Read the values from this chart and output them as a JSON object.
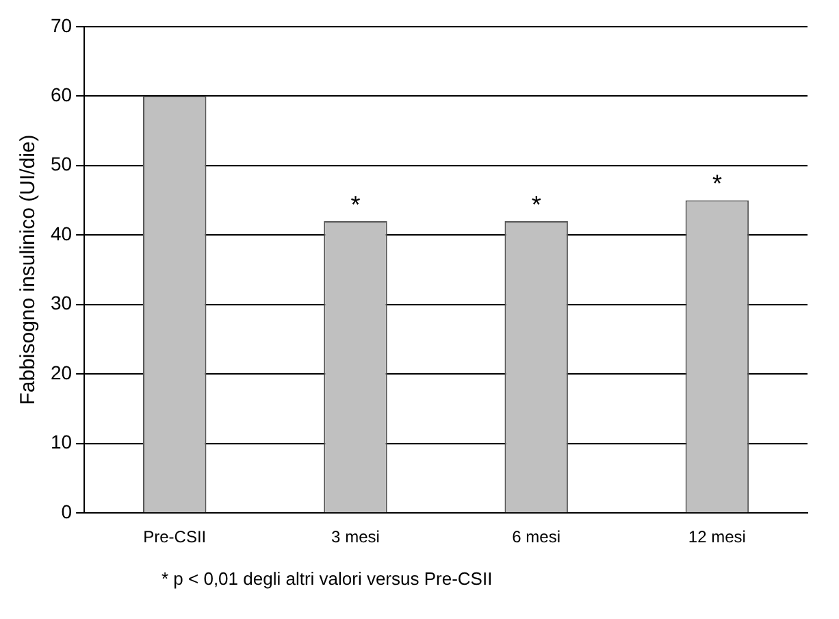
{
  "chart_data": {
    "type": "bar",
    "ylabel": "Fabbisogno insulinico (UI/die)",
    "categories": [
      "Pre-CSII",
      "3 mesi",
      "6 mesi",
      "12 mesi"
    ],
    "values": [
      60,
      42,
      42,
      45
    ],
    "color": "#c0c0c0",
    "ylim": [
      0,
      70
    ],
    "yticks": [
      0,
      10,
      20,
      30,
      40,
      50,
      60,
      70
    ],
    "grid": "y",
    "legend": false,
    "annotations": [
      {
        "text": "*",
        "x": "3 mesi",
        "y": 42
      },
      {
        "text": "*",
        "x": "6 mesi",
        "y": 42
      },
      {
        "text": "*",
        "x": "12 mesi",
        "y": 45
      },
      "* p < 0,01 degli altri valori versus Pre-CSII"
    ]
  }
}
